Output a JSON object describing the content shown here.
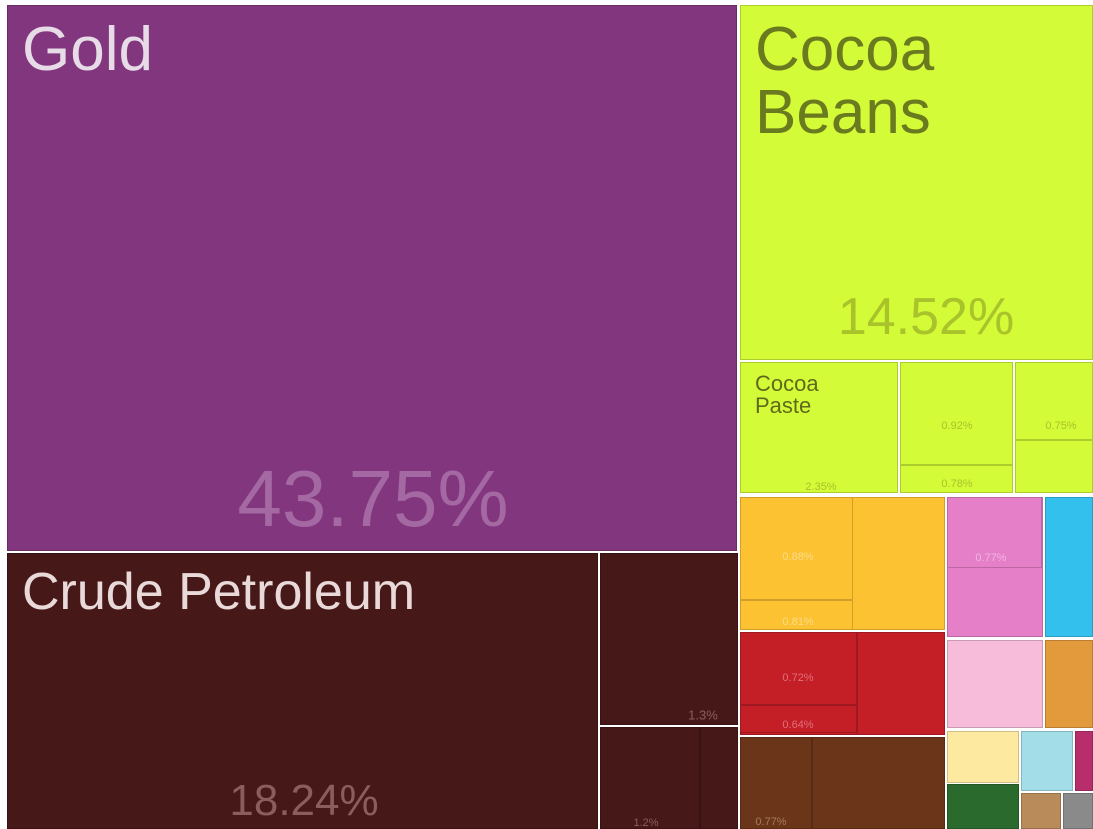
{
  "chart_data": {
    "type": "treemap",
    "names": [
      "Gold",
      "Crude Petroleum",
      "Cocoa Beans",
      "Cocoa Paste",
      null,
      null,
      null,
      null,
      null,
      null,
      null,
      null,
      null,
      null,
      null
    ],
    "values": [
      43.75,
      18.24,
      14.52,
      2.35,
      0.92,
      0.75,
      0.78,
      1.3,
      1.2,
      0.88,
      0.81,
      0.77,
      0.72,
      0.64,
      0.77
    ],
    "value_labels": [
      "43.75%",
      "18.24%",
      "14.52%",
      "2.35%",
      "0.92%",
      "0.75%",
      "0.78%",
      "1.3%",
      "1.2%",
      "0.88%",
      "0.81%",
      "0.77%",
      "0.72%",
      "0.64%",
      "0.77%"
    ],
    "colors": [
      "#82367e",
      "#461818",
      "#d4fb37",
      "#d4fb37",
      "#d4fb37",
      "#d4fb37",
      "#d4fb37",
      "#461818",
      "#461818",
      "#fdc232",
      "#fdc232",
      "#e47fc8",
      "#c41e26",
      "#c41e26",
      "#6b3519"
    ]
  }
}
